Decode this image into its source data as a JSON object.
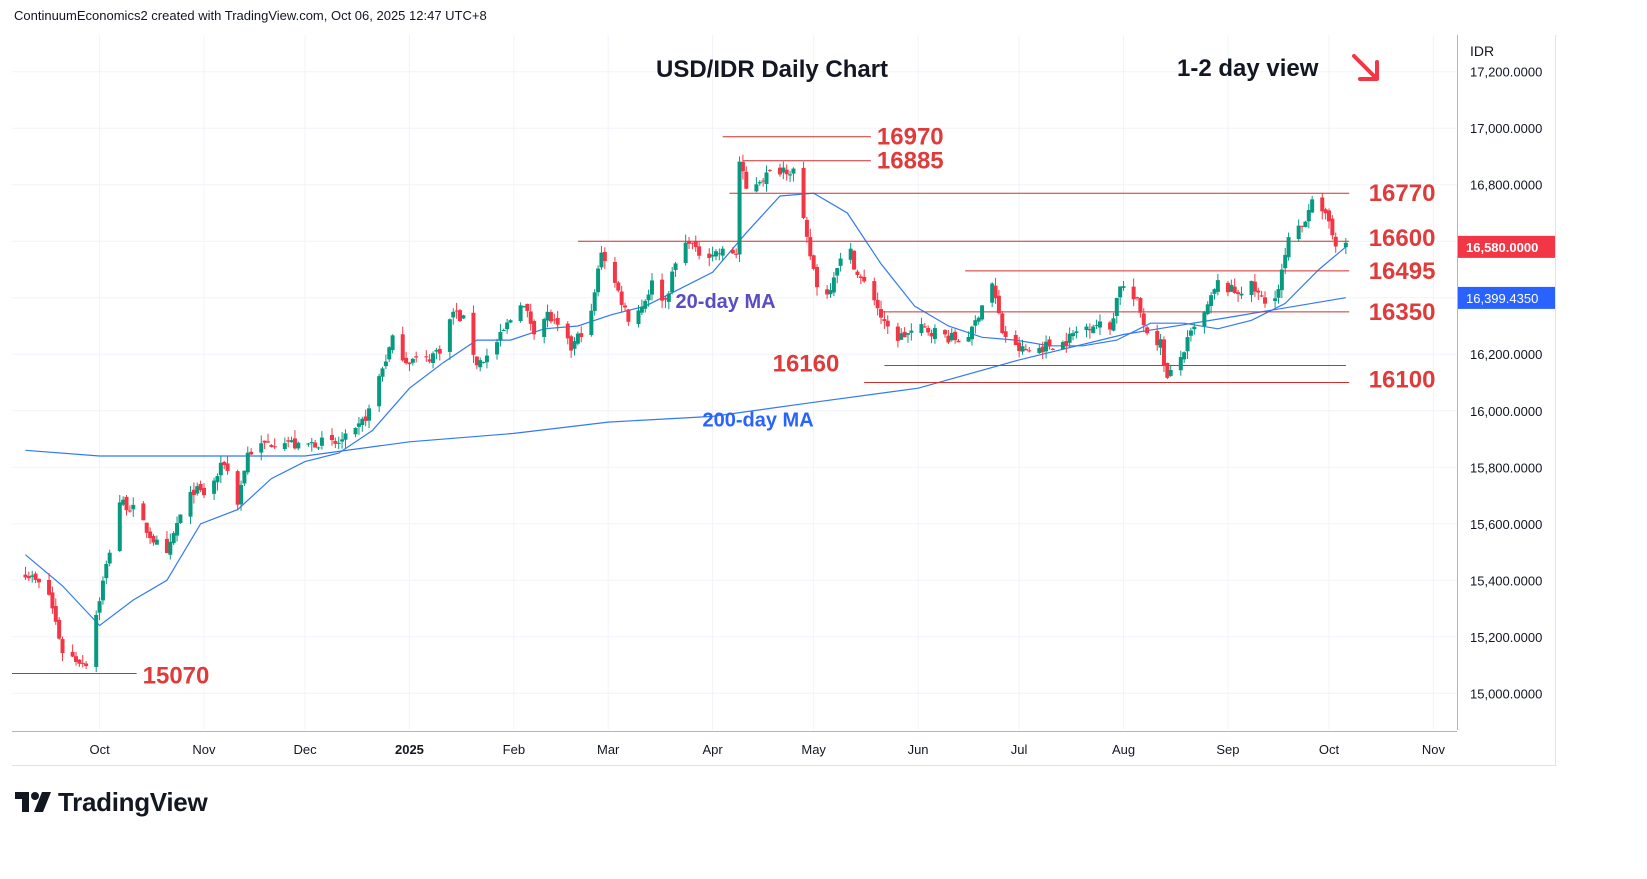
{
  "header": {
    "text": "ContinuumEconomics2 created with TradingView.com, Oct 06, 2025 12:47 UTC+8"
  },
  "title": "USD/IDR Daily Chart",
  "view": "1-2 day view",
  "view_arrow_icon": "arrow-down-right-icon",
  "currency": "IDR",
  "brand": "TradingView",
  "colors": {
    "up": "#089981",
    "down": "#f23645",
    "level": "#e03b3b",
    "ma20": "#3179f5",
    "ma200": "#3179f5",
    "ma20_label": "#5b4cc4",
    "ma200_label": "#2962ff",
    "price_tag": "#f23645",
    "ma_tag": "#2962ff"
  },
  "chart_data": {
    "type": "candlestick",
    "title": "USD/IDR Daily Chart",
    "ylim": [
      14870,
      17330
    ],
    "y_ticks": [
      "17,200.0000",
      "17,000.0000",
      "16,800.0000",
      "16,600.0000",
      "16,400.0000",
      "16,200.0000",
      "16,000.0000",
      "15,800.0000",
      "15,600.0000",
      "15,400.0000",
      "15,200.0000",
      "15,000.0000"
    ],
    "x_ticks": [
      {
        "label": "Oct",
        "date": "2024-10-01"
      },
      {
        "label": "Nov",
        "date": "2024-11-01"
      },
      {
        "label": "Dec",
        "date": "2024-12-01"
      },
      {
        "label": "2025",
        "date": "2025-01-01",
        "bold": true
      },
      {
        "label": "Feb",
        "date": "2025-02-01"
      },
      {
        "label": "Mar",
        "date": "2025-03-01"
      },
      {
        "label": "Apr",
        "date": "2025-04-01"
      },
      {
        "label": "May",
        "date": "2025-05-01"
      },
      {
        "label": "Jun",
        "date": "2025-06-01"
      },
      {
        "label": "Jul",
        "date": "2025-07-01"
      },
      {
        "label": "Aug",
        "date": "2025-08-01"
      },
      {
        "label": "Sep",
        "date": "2025-09-01"
      },
      {
        "label": "Oct",
        "date": "2025-10-01"
      },
      {
        "label": "Nov",
        "date": "2025-11-01"
      }
    ],
    "close_path": [
      {
        "date": "2024-09-09",
        "close": 15430
      },
      {
        "date": "2024-09-16",
        "close": 15350
      },
      {
        "date": "2024-09-20",
        "close": 15150
      },
      {
        "date": "2024-09-24",
        "close": 15120
      },
      {
        "date": "2024-09-27",
        "close": 15110
      },
      {
        "date": "2024-10-03",
        "close": 15450
      },
      {
        "date": "2024-10-07",
        "close": 15680
      },
      {
        "date": "2024-10-11",
        "close": 15650
      },
      {
        "date": "2024-10-16",
        "close": 15560
      },
      {
        "date": "2024-10-21",
        "close": 15480
      },
      {
        "date": "2024-10-24",
        "close": 15600
      },
      {
        "date": "2024-10-29",
        "close": 15720
      },
      {
        "date": "2024-11-02",
        "close": 15700
      },
      {
        "date": "2024-11-07",
        "close": 15820
      },
      {
        "date": "2024-11-11",
        "close": 15680
      },
      {
        "date": "2024-11-14",
        "close": 15850
      },
      {
        "date": "2024-11-19",
        "close": 15880
      },
      {
        "date": "2024-11-25",
        "close": 15900
      },
      {
        "date": "2024-11-29",
        "close": 15870
      },
      {
        "date": "2024-12-05",
        "close": 15890
      },
      {
        "date": "2024-12-10",
        "close": 15880
      },
      {
        "date": "2024-12-16",
        "close": 15920
      },
      {
        "date": "2024-12-20",
        "close": 16000
      },
      {
        "date": "2024-12-23",
        "close": 16120
      },
      {
        "date": "2024-12-27",
        "close": 16250
      },
      {
        "date": "2024-12-31",
        "close": 16180
      },
      {
        "date": "2025-01-06",
        "close": 16180
      },
      {
        "date": "2025-01-10",
        "close": 16220
      },
      {
        "date": "2025-01-14",
        "close": 16350
      },
      {
        "date": "2025-01-17",
        "close": 16320
      },
      {
        "date": "2025-01-21",
        "close": 16170
      },
      {
        "date": "2025-01-24",
        "close": 16190
      },
      {
        "date": "2025-01-28",
        "close": 16260
      },
      {
        "date": "2025-02-03",
        "close": 16390
      },
      {
        "date": "2025-02-07",
        "close": 16290
      },
      {
        "date": "2025-02-11",
        "close": 16340
      },
      {
        "date": "2025-02-14",
        "close": 16290
      },
      {
        "date": "2025-02-18",
        "close": 16220
      },
      {
        "date": "2025-02-21",
        "close": 16280
      },
      {
        "date": "2025-02-24",
        "close": 16340
      },
      {
        "date": "2025-02-27",
        "close": 16570
      },
      {
        "date": "2025-03-03",
        "close": 16450
      },
      {
        "date": "2025-03-07",
        "close": 16330
      },
      {
        "date": "2025-03-11",
        "close": 16370
      },
      {
        "date": "2025-03-14",
        "close": 16450
      },
      {
        "date": "2025-03-18",
        "close": 16390
      },
      {
        "date": "2025-03-21",
        "close": 16520
      },
      {
        "date": "2025-03-25",
        "close": 16610
      },
      {
        "date": "2025-03-27",
        "close": 16560
      },
      {
        "date": "2025-04-08",
        "close": 16560
      },
      {
        "date": "2025-04-09",
        "close": 16880
      },
      {
        "date": "2025-04-11",
        "close": 16780
      },
      {
        "date": "2025-04-15",
        "close": 16820
      },
      {
        "date": "2025-04-18",
        "close": 16840
      },
      {
        "date": "2025-04-22",
        "close": 16860
      },
      {
        "date": "2025-04-25",
        "close": 16850
      },
      {
        "date": "2025-04-29",
        "close": 16600
      },
      {
        "date": "2025-05-02",
        "close": 16450
      },
      {
        "date": "2025-05-05",
        "close": 16410
      },
      {
        "date": "2025-05-08",
        "close": 16520
      },
      {
        "date": "2025-05-12",
        "close": 16560
      },
      {
        "date": "2025-05-14",
        "close": 16480
      },
      {
        "date": "2025-05-19",
        "close": 16400
      },
      {
        "date": "2025-05-22",
        "close": 16300
      },
      {
        "date": "2025-05-26",
        "close": 16260
      },
      {
        "date": "2025-06-02",
        "close": 16290
      },
      {
        "date": "2025-06-06",
        "close": 16280
      },
      {
        "date": "2025-06-10",
        "close": 16260
      },
      {
        "date": "2025-06-13",
        "close": 16250
      },
      {
        "date": "2025-06-17",
        "close": 16280
      },
      {
        "date": "2025-06-20",
        "close": 16380
      },
      {
        "date": "2025-06-23",
        "close": 16450
      },
      {
        "date": "2025-06-26",
        "close": 16280
      },
      {
        "date": "2025-06-30",
        "close": 16220
      },
      {
        "date": "2025-07-04",
        "close": 16210
      },
      {
        "date": "2025-07-09",
        "close": 16230
      },
      {
        "date": "2025-07-14",
        "close": 16240
      },
      {
        "date": "2025-07-18",
        "close": 16280
      },
      {
        "date": "2025-07-23",
        "close": 16310
      },
      {
        "date": "2025-07-28",
        "close": 16290
      },
      {
        "date": "2025-07-31",
        "close": 16450
      },
      {
        "date": "2025-08-05",
        "close": 16380
      },
      {
        "date": "2025-08-08",
        "close": 16280
      },
      {
        "date": "2025-08-12",
        "close": 16240
      },
      {
        "date": "2025-08-14",
        "close": 16110
      },
      {
        "date": "2025-08-18",
        "close": 16190
      },
      {
        "date": "2025-08-21",
        "close": 16270
      },
      {
        "date": "2025-08-25",
        "close": 16340
      },
      {
        "date": "2025-08-29",
        "close": 16450
      },
      {
        "date": "2025-09-03",
        "close": 16420
      },
      {
        "date": "2025-09-08",
        "close": 16440
      },
      {
        "date": "2025-09-12",
        "close": 16380
      },
      {
        "date": "2025-09-16",
        "close": 16430
      },
      {
        "date": "2025-09-19",
        "close": 16600
      },
      {
        "date": "2025-09-23",
        "close": 16650
      },
      {
        "date": "2025-09-26",
        "close": 16760
      },
      {
        "date": "2025-09-29",
        "close": 16690
      },
      {
        "date": "2025-10-01",
        "close": 16670
      },
      {
        "date": "2025-10-03",
        "close": 16600
      },
      {
        "date": "2025-10-06",
        "close": 16580
      }
    ],
    "ma20": [
      {
        "date": "2024-09-09",
        "value": 15490
      },
      {
        "date": "2024-09-20",
        "value": 15380
      },
      {
        "date": "2024-10-01",
        "value": 15240
      },
      {
        "date": "2024-10-11",
        "value": 15330
      },
      {
        "date": "2024-10-21",
        "value": 15400
      },
      {
        "date": "2024-10-31",
        "value": 15600
      },
      {
        "date": "2024-11-11",
        "value": 15650
      },
      {
        "date": "2024-11-21",
        "value": 15760
      },
      {
        "date": "2024-12-01",
        "value": 15820
      },
      {
        "date": "2024-12-11",
        "value": 15850
      },
      {
        "date": "2024-12-21",
        "value": 15930
      },
      {
        "date": "2025-01-01",
        "value": 16080
      },
      {
        "date": "2025-01-11",
        "value": 16170
      },
      {
        "date": "2025-01-21",
        "value": 16250
      },
      {
        "date": "2025-01-31",
        "value": 16250
      },
      {
        "date": "2025-02-10",
        "value": 16290
      },
      {
        "date": "2025-02-20",
        "value": 16300
      },
      {
        "date": "2025-03-02",
        "value": 16340
      },
      {
        "date": "2025-03-12",
        "value": 16370
      },
      {
        "date": "2025-03-22",
        "value": 16430
      },
      {
        "date": "2025-04-01",
        "value": 16490
      },
      {
        "date": "2025-04-11",
        "value": 16630
      },
      {
        "date": "2025-04-21",
        "value": 16760
      },
      {
        "date": "2025-05-01",
        "value": 16770
      },
      {
        "date": "2025-05-11",
        "value": 16700
      },
      {
        "date": "2025-05-21",
        "value": 16520
      },
      {
        "date": "2025-05-31",
        "value": 16370
      },
      {
        "date": "2025-06-10",
        "value": 16300
      },
      {
        "date": "2025-06-20",
        "value": 16260
      },
      {
        "date": "2025-06-30",
        "value": 16250
      },
      {
        "date": "2025-07-10",
        "value": 16230
      },
      {
        "date": "2025-07-20",
        "value": 16230
      },
      {
        "date": "2025-07-30",
        "value": 16250
      },
      {
        "date": "2025-08-09",
        "value": 16310
      },
      {
        "date": "2025-08-19",
        "value": 16310
      },
      {
        "date": "2025-08-29",
        "value": 16290
      },
      {
        "date": "2025-09-08",
        "value": 16320
      },
      {
        "date": "2025-09-18",
        "value": 16380
      },
      {
        "date": "2025-09-28",
        "value": 16500
      },
      {
        "date": "2025-10-06",
        "value": 16580
      }
    ],
    "ma200": [
      {
        "date": "2024-09-09",
        "value": 15860
      },
      {
        "date": "2024-10-01",
        "value": 15840
      },
      {
        "date": "2024-11-01",
        "value": 15840
      },
      {
        "date": "2024-12-01",
        "value": 15840
      },
      {
        "date": "2025-01-01",
        "value": 15890
      },
      {
        "date": "2025-02-01",
        "value": 15920
      },
      {
        "date": "2025-03-01",
        "value": 15960
      },
      {
        "date": "2025-04-01",
        "value": 15980
      },
      {
        "date": "2025-05-01",
        "value": 16030
      },
      {
        "date": "2025-06-01",
        "value": 16080
      },
      {
        "date": "2025-07-01",
        "value": 16180
      },
      {
        "date": "2025-08-01",
        "value": 16270
      },
      {
        "date": "2025-09-01",
        "value": 16330
      },
      {
        "date": "2025-10-06",
        "value": 16400
      }
    ],
    "levels": [
      {
        "label": "16970",
        "value": 16970
      },
      {
        "label": "16885",
        "value": 16885
      },
      {
        "label": "16770",
        "value": 16770
      },
      {
        "label": "16600",
        "value": 16600
      },
      {
        "label": "16495",
        "value": 16495
      },
      {
        "label": "16350",
        "value": 16350
      },
      {
        "label": "16160",
        "value": 16160
      },
      {
        "label": "16100",
        "value": 16100
      },
      {
        "label": "15070",
        "value": 15070
      }
    ],
    "annotations": {
      "ma20_label": "20-day MA",
      "ma200_label": "200-day MA"
    },
    "last_price": {
      "value": 16580,
      "label": "16,580.0000"
    },
    "ma200_last": {
      "value": 16399.435,
      "label": "16,399.4350"
    }
  }
}
